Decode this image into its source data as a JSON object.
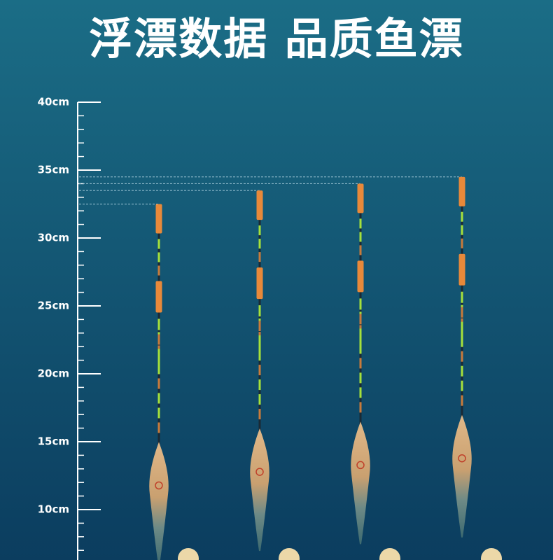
{
  "chart_data": {
    "type": "float",
    "title": "浮漂数据 品质鱼漂",
    "categories": [
      null,
      null,
      null,
      null
    ],
    "values": [
      32.5,
      33.5,
      34,
      34.5
    ],
    "color": "#e8893a",
    "ylim": [
      6,
      40
    ],
    "yticks": [
      {
        "value": 10,
        "label": "10cm"
      },
      {
        "value": 15,
        "label": "15cm"
      },
      {
        "value": 20,
        "label": "20cm"
      },
      {
        "value": 25,
        "label": "25cm"
      },
      {
        "value": 30,
        "label": "30cm"
      },
      {
        "value": 35,
        "label": "35cm"
      },
      {
        "value": 40,
        "label": "40cm"
      }
    ],
    "minor_yticks": [
      7,
      8,
      9,
      11,
      12,
      13,
      14,
      16,
      17,
      18,
      19,
      21,
      22,
      23,
      24,
      26,
      27,
      28,
      29,
      31,
      32,
      33,
      34,
      36,
      37,
      38,
      39
    ]
  }
}
